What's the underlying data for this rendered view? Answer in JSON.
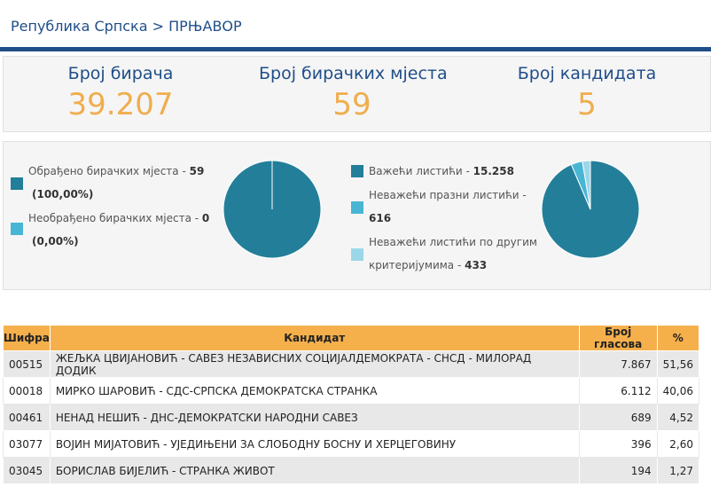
{
  "header": {
    "breadcrumb": "Република Српска > ПРЊАВОР"
  },
  "stats": [
    {
      "label": "Број бирача",
      "value": "39.207"
    },
    {
      "label": "Број бирачких мјеста",
      "value": "59"
    },
    {
      "label": "Број кандидата",
      "value": "5"
    }
  ],
  "stations": {
    "processed_text": "Обрађено бирачких мјеста - ",
    "processed_value": "59",
    "processed_pct": "(100,00%)",
    "unprocessed_text": "Необрађено бирачких мјеста - ",
    "unprocessed_value": "0",
    "unprocessed_pct": "(0,00%)",
    "processed_fraction": 1.0
  },
  "ballots": {
    "valid_text": "Важећи листићи - ",
    "valid_value": "15.258",
    "blank_text_1": "Неважећи празни листићи -",
    "blank_value": "616",
    "other_text_1": "Неважећи листићи по другим",
    "other_text_2": "критеријумима - ",
    "other_value": "433",
    "counts": [
      15258,
      616,
      433
    ]
  },
  "colors": {
    "main": "#237f99",
    "light": "#49b5d5",
    "lighter": "#9bd7e8",
    "accent": "#f0ad4e",
    "header_blue": "#1f4e89"
  },
  "table": {
    "headers": [
      "Шифра",
      "Кандидат",
      "Број гласова",
      "%"
    ],
    "rows": [
      [
        "00515",
        "ЖЕЉКА ЦВИЈАНОВИЋ - САВЕЗ НЕЗАВИСНИХ СОЦИЈАЛДЕМОКРАТА - СНСД - МИЛОРАД ДОДИК",
        "7.867",
        "51,56"
      ],
      [
        "00018",
        "МИРКО ШАРОВИЋ - СДС-СРПСКА ДЕМОКРАТСКА СТРАНКА",
        "6.112",
        "40,06"
      ],
      [
        "00461",
        "НЕНАД НЕШИЋ - ДНС-ДЕМОКРАТСКИ НАРОДНИ САВЕЗ",
        "689",
        "4,52"
      ],
      [
        "03077",
        "ВОЈИН МИЈАТОВИЋ - УЈЕДИЊЕНИ ЗА СЛОБОДНУ БОСНУ И ХЕРЦЕГОВИНУ",
        "396",
        "2,60"
      ],
      [
        "03045",
        "БОРИСЛАВ БИЈЕЛИЋ - СТРАНКА ЖИВОТ",
        "194",
        "1,27"
      ]
    ]
  }
}
